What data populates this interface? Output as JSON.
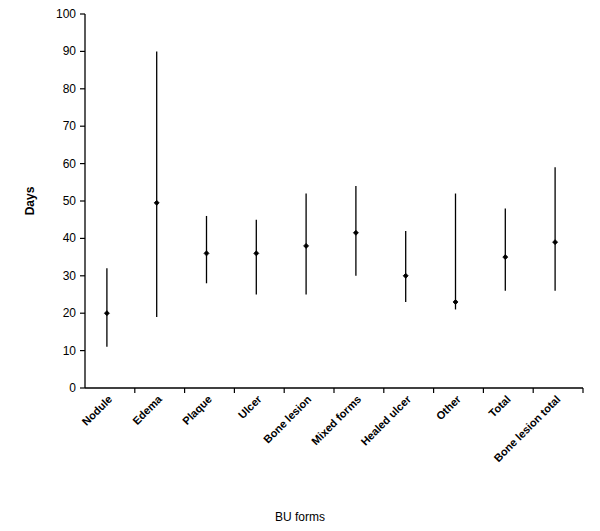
{
  "chart_data": {
    "type": "errorbar",
    "x_label": "BU forms",
    "y_label": "Days",
    "categories": [
      "Nodule",
      "Edema",
      "Plaque",
      "Ulcer",
      "Bone lesion",
      "Mixed forms",
      "Healed ulcer",
      "Other",
      "Total",
      "Bone lesion total"
    ],
    "values": [
      20,
      49.5,
      36,
      36,
      38,
      41.5,
      30,
      23,
      35,
      39
    ],
    "lower": [
      11,
      19,
      28,
      25,
      25,
      30,
      23,
      21,
      26,
      26
    ],
    "upper": [
      32,
      90,
      46,
      45,
      52,
      54,
      42,
      52,
      48,
      59
    ],
    "color": "#000000",
    "ylim": [
      0,
      100
    ],
    "yticks": [
      0,
      10,
      20,
      30,
      40,
      50,
      60,
      70,
      80,
      90,
      100
    ],
    "grid": false
  }
}
